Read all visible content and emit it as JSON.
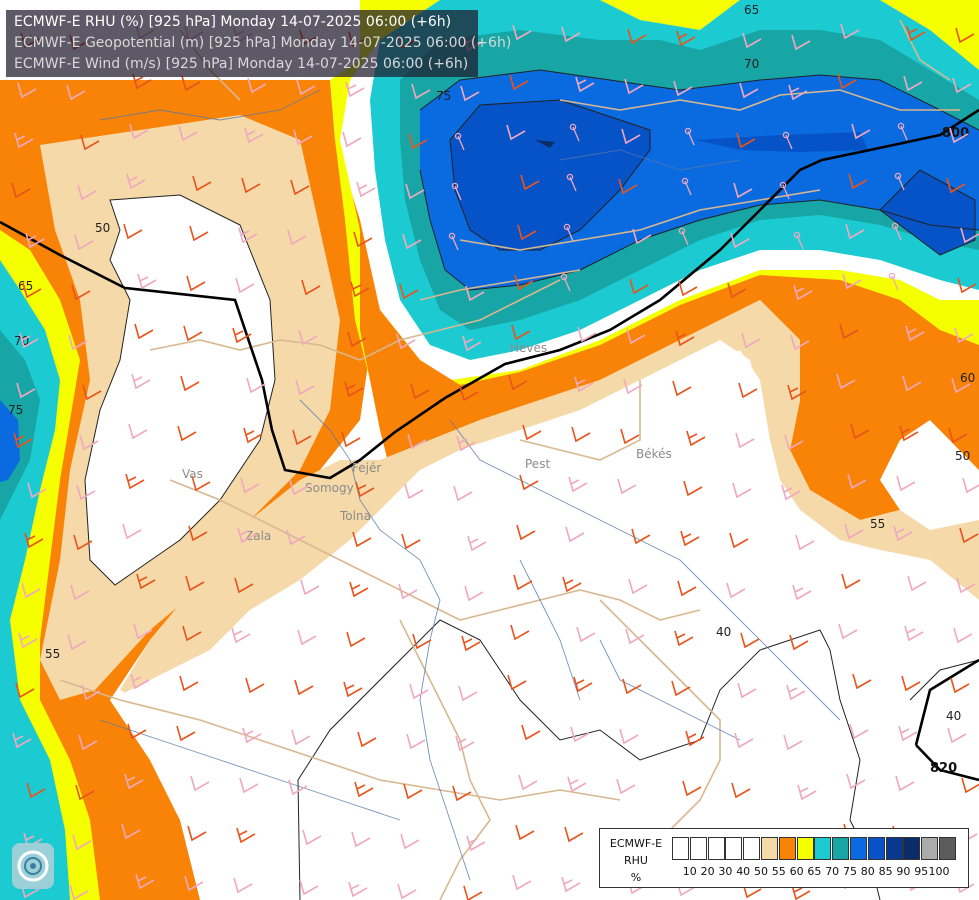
{
  "header": {
    "line1": "ECMWF-E RHU (%) [925 hPa] Monday 14-07-2025 06:00 (+6h)",
    "line2": "ECMWF-E Geopotential (m) [925 hPa] Monday 14-07-2025 06:00 (+6h)",
    "line3": "ECMWF-E Wind (m/s) [925 hPa] Monday 14-07-2025 06:00 (+6h)"
  },
  "legend": {
    "title1": "ECMWF-E",
    "title2": "RHU",
    "unit": "%",
    "ticks": [
      "10",
      "20",
      "30",
      "40",
      "50",
      "55",
      "60",
      "65",
      "70",
      "75",
      "80",
      "85",
      "90",
      "95",
      "100"
    ],
    "colors": [
      "#ffffff",
      "#ffffff",
      "#ffffff",
      "#ffffff",
      "#ffffff",
      "#f5d9a8",
      "#f98307",
      "#f5ff00",
      "#1ccbd1",
      "#17a6a5",
      "#0a6be0",
      "#0653c8",
      "#073a8e",
      "#0a2c6b",
      "#ababab",
      "#5c5c5c"
    ]
  },
  "contour_labels": {
    "rhu": [
      "65",
      "70",
      "75",
      "50",
      "65",
      "70",
      "75",
      "60",
      "50",
      "55",
      "55",
      "40",
      "40"
    ],
    "geopotential": [
      "800",
      "820"
    ]
  },
  "regions": [
    "Vas",
    "Zala",
    "Somogy",
    "Tolna",
    "Fejér",
    "Pest",
    "Heves",
    "Békés"
  ],
  "colors": {
    "rhu_55": "#f5d9a8",
    "rhu_60": "#f98307",
    "rhu_65": "#f5ff00",
    "rhu_70": "#1ccbd1",
    "rhu_75": "#17a6a5",
    "rhu_80": "#0a6be0",
    "rhu_85": "#0653c8",
    "rhu_90": "#073a8e",
    "wind_strong": "#e8541c",
    "wind_light": "#f0a8c0",
    "border": "#d8b890",
    "river": "#5577aa"
  }
}
